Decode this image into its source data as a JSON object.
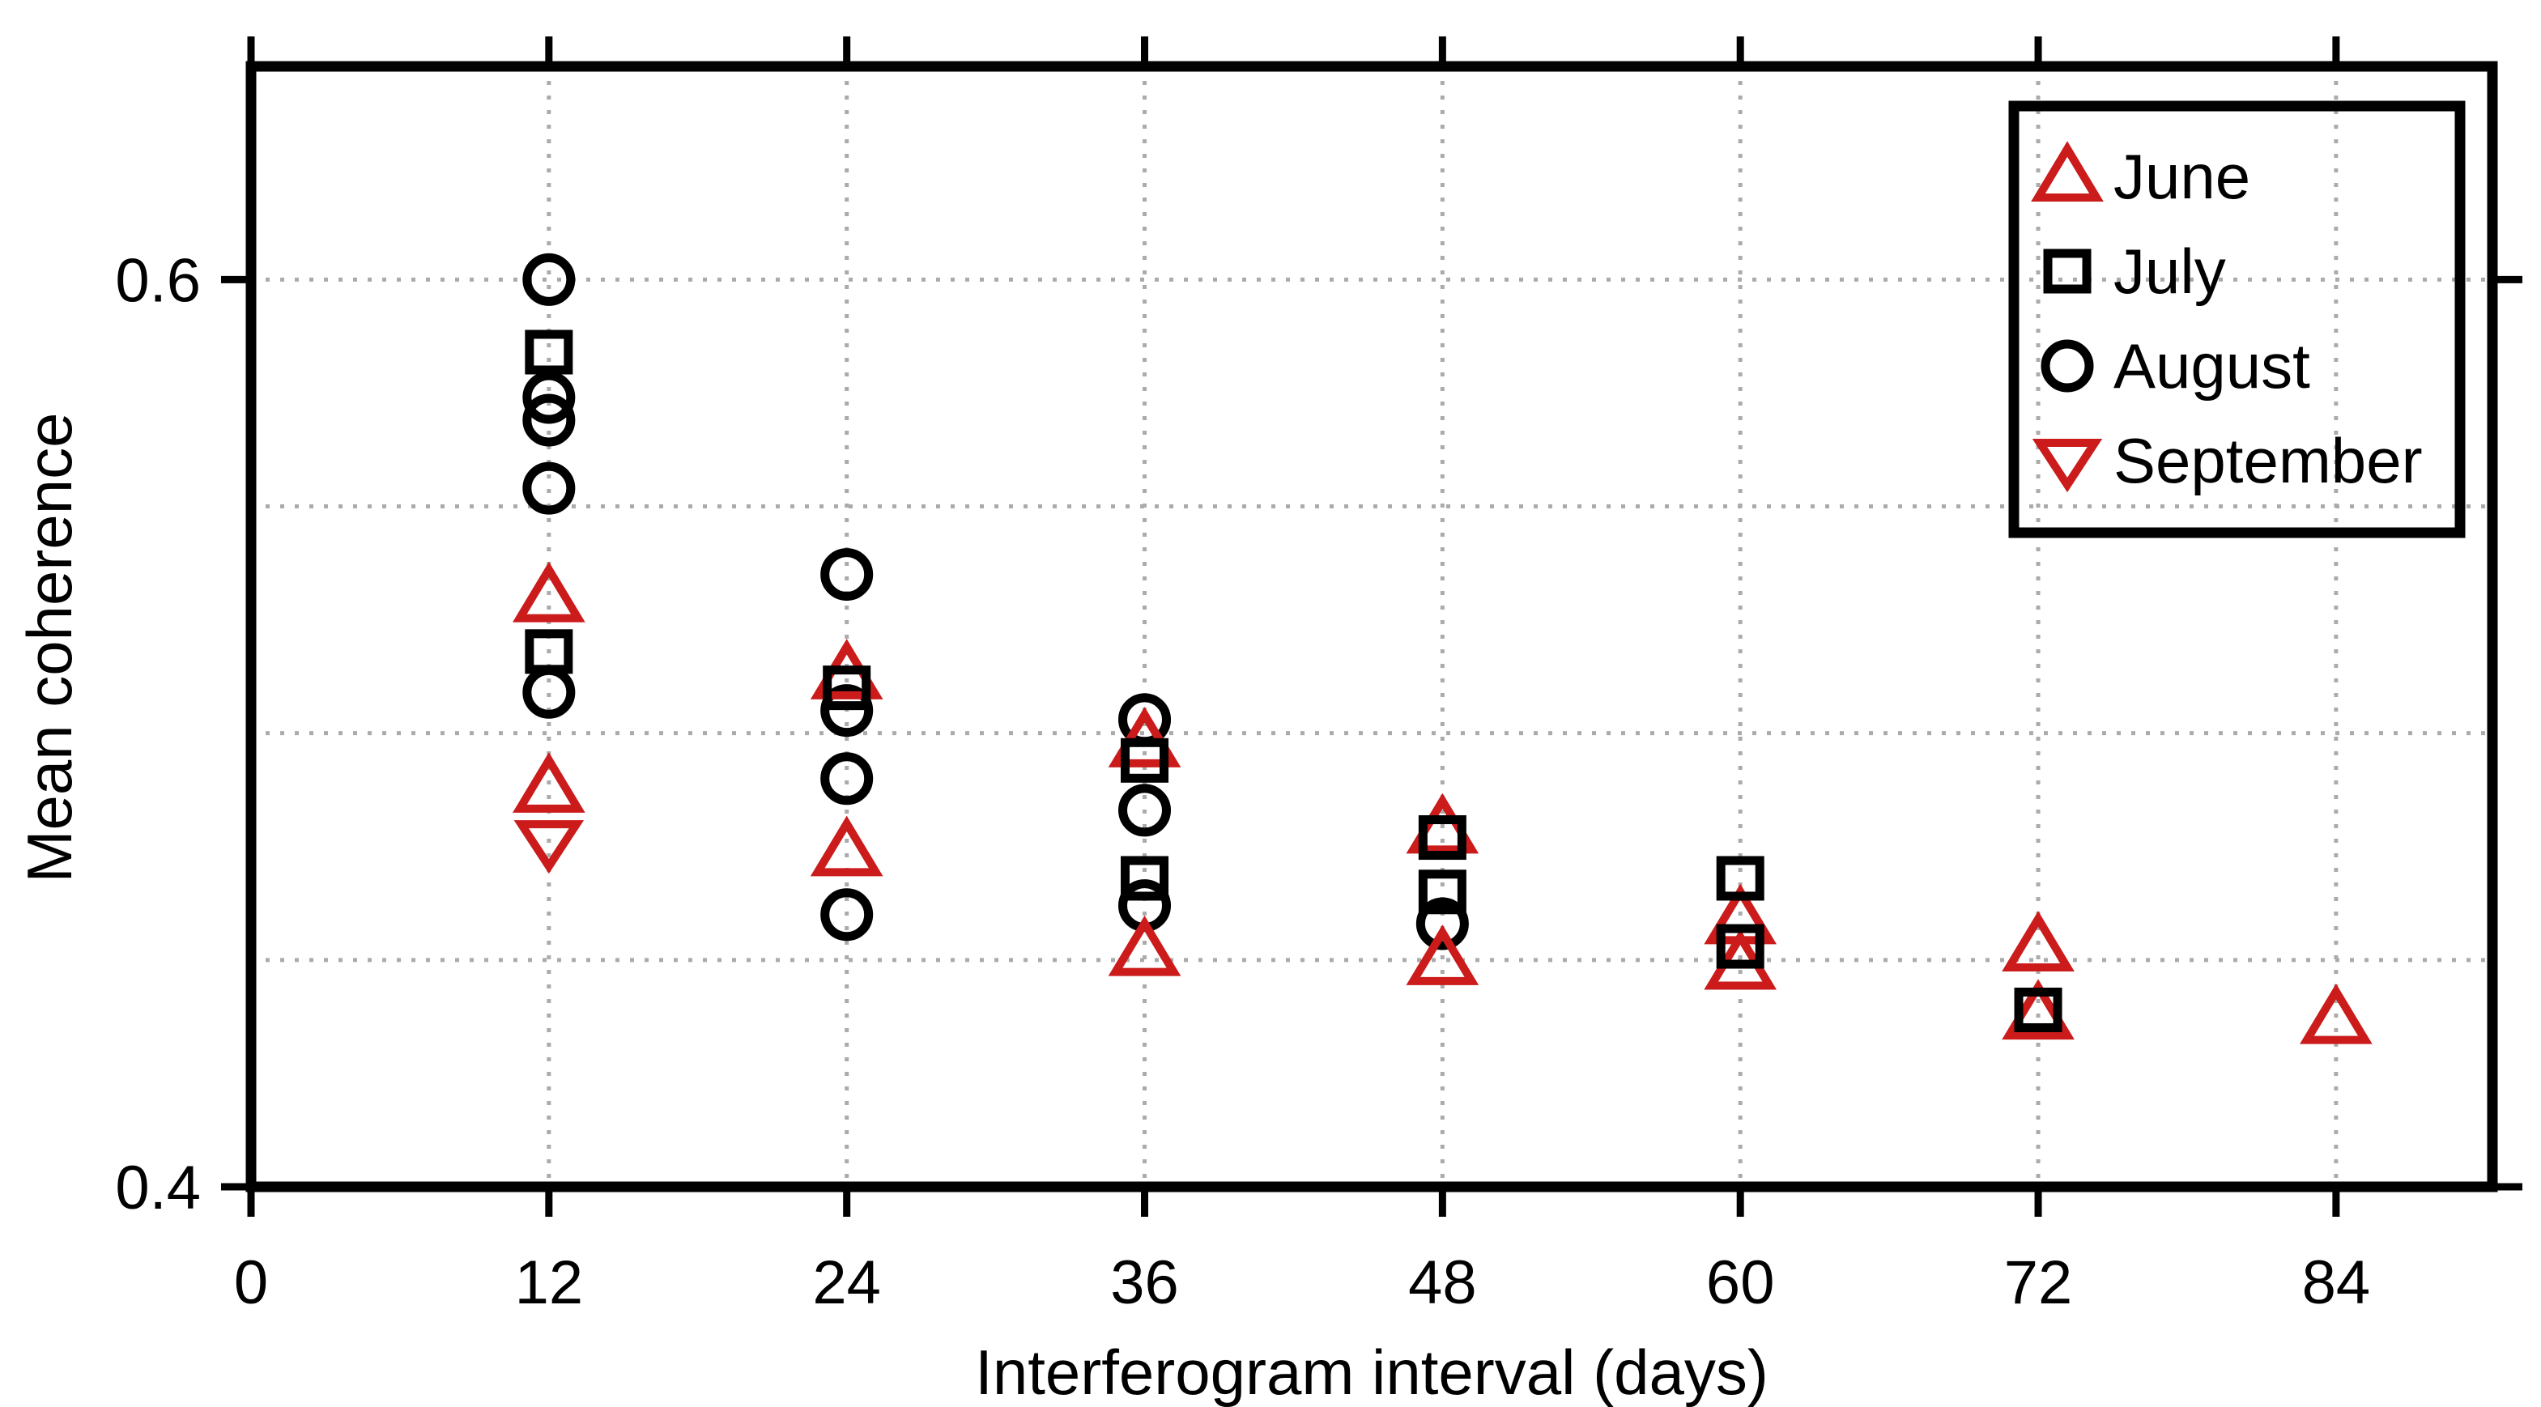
{
  "figure": {
    "background": "#ffffff",
    "frame_color": "#000000",
    "grid_color": "#ababab",
    "tick_color": "#000000",
    "text_color": "#000000",
    "red_accent": "#cb1b1b",
    "black_marker": "#000000"
  },
  "chart_data": {
    "type": "scatter",
    "title": "",
    "xlabel": "Interferogram interval (days)",
    "ylabel": "Mean coherence",
    "xlim": [
      0,
      90.3
    ],
    "ylim": [
      0.4,
      0.647
    ],
    "x_ticks": [
      0,
      12,
      24,
      36,
      48,
      60,
      72,
      84
    ],
    "y_ticks": [
      0.4,
      0.6
    ],
    "y_tick_labels": [
      "0.4",
      "0.6"
    ],
    "x_gridlines": [
      12,
      24,
      36,
      48,
      60,
      72,
      84
    ],
    "y_gridlines": [
      0.45,
      0.5,
      0.55,
      0.6
    ],
    "grid": true,
    "grid_style": "dotted",
    "legend_position": "top-right",
    "draw_order": [
      "August",
      "June",
      "September",
      "July"
    ],
    "series": [
      {
        "name": "June",
        "marker": "triangle-up",
        "color": "#cb1b1b",
        "points": [
          [
            12,
            0.53
          ],
          [
            12,
            0.488
          ],
          [
            24,
            0.513
          ],
          [
            24,
            0.474
          ],
          [
            36,
            0.498
          ],
          [
            36,
            0.452
          ],
          [
            48,
            0.479
          ],
          [
            48,
            0.45
          ],
          [
            60,
            0.459
          ],
          [
            60,
            0.449
          ],
          [
            72,
            0.453
          ],
          [
            72,
            0.438
          ],
          [
            84,
            0.437
          ]
        ]
      },
      {
        "name": "July",
        "marker": "square",
        "color": "#000000",
        "points": [
          [
            12,
            0.584
          ],
          [
            12,
            0.518
          ],
          [
            24,
            0.51
          ],
          [
            36,
            0.494
          ],
          [
            36,
            0.468
          ],
          [
            48,
            0.477
          ],
          [
            48,
            0.465
          ],
          [
            60,
            0.468
          ],
          [
            60,
            0.453
          ],
          [
            72,
            0.439
          ]
        ]
      },
      {
        "name": "August",
        "marker": "circle",
        "color": "#000000",
        "points": [
          [
            12,
            0.6
          ],
          [
            12,
            0.574
          ],
          [
            12,
            0.569
          ],
          [
            12,
            0.554
          ],
          [
            12,
            0.509
          ],
          [
            24,
            0.535
          ],
          [
            24,
            0.505
          ],
          [
            24,
            0.49
          ],
          [
            24,
            0.46
          ],
          [
            36,
            0.503
          ],
          [
            36,
            0.483
          ],
          [
            36,
            0.462
          ],
          [
            48,
            0.458
          ]
        ]
      },
      {
        "name": "September",
        "marker": "triangle-down",
        "color": "#cb1b1b",
        "points": [
          [
            12,
            0.476
          ]
        ]
      }
    ]
  }
}
